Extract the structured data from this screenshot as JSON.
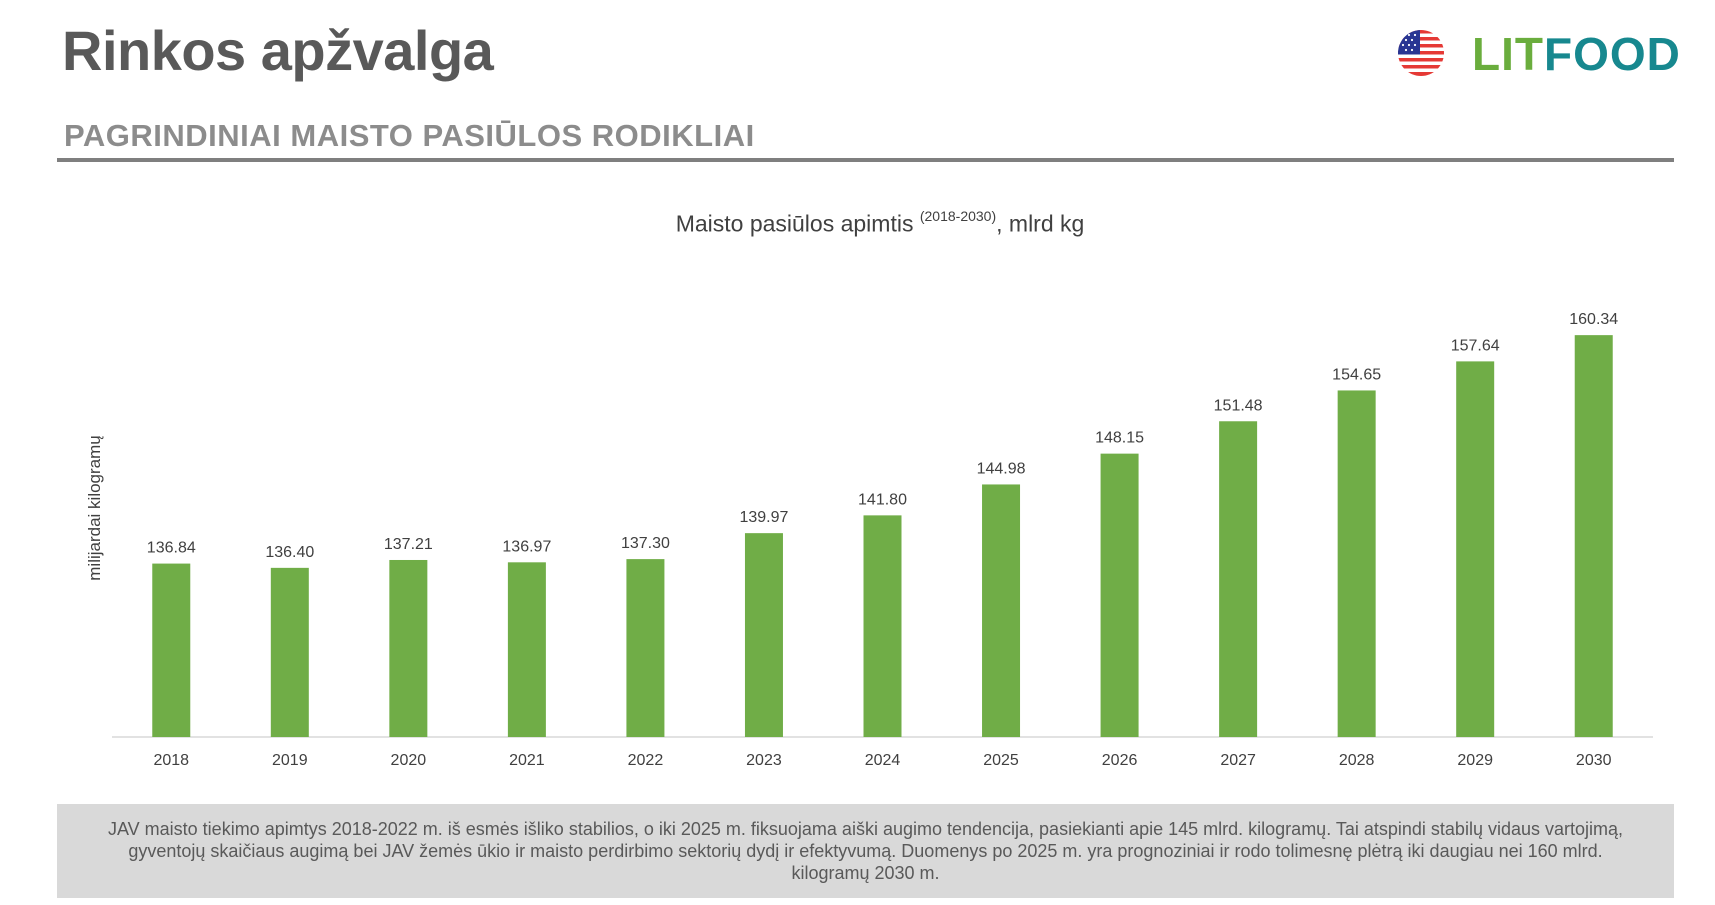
{
  "page": {
    "title": "Rinkos apžvalga",
    "section_title": "PAGRINDINIAI MAISTO PASIŪLOS RODIKLIAI",
    "note": "JAV maisto tiekimo apimtys 2018-2022 m. iš esmės išliko stabilios, o iki 2025 m. fiksuojama aiški augimo tendencija, pasiekianti apie 145 mlrd. kilogramų. Tai atspindi stabilų vidaus vartojimą, gyventojų skaičiaus augimą bei JAV žemės ūkio ir maisto perdirbimo sektorių dydį ir efektyvumą. Duomenys po 2025 m. yra prognoziniai ir rodo tolimesnę plėtrą iki daugiau nei 160 mlrd. kilogramų 2030 m."
  },
  "logo": {
    "part1": "LIT",
    "part2": "FOOD",
    "icon": "leaf-icon",
    "flag_icon": "us-flag-icon",
    "colors": {
      "green": "#6aad3d",
      "teal": "#17888f"
    }
  },
  "chart_data": {
    "type": "bar",
    "title_main": "Maisto pasiūlos apimtis ",
    "title_sup": "(2018-2030)",
    "title_end": ", mlrd kg",
    "ylabel": "milijardai kilogramų",
    "xlabel": "",
    "categories": [
      "2018",
      "2019",
      "2020",
      "2021",
      "2022",
      "2023",
      "2024",
      "2025",
      "2026",
      "2027",
      "2028",
      "2029",
      "2030"
    ],
    "values": [
      136.84,
      136.4,
      137.21,
      136.97,
      137.3,
      139.97,
      141.8,
      144.98,
      148.15,
      151.48,
      154.65,
      157.64,
      160.34
    ],
    "value_labels": [
      "136.84",
      "136.40",
      "137.21",
      "136.97",
      "137.30",
      "139.97",
      "141.80",
      "144.98",
      "148.15",
      "151.48",
      "154.65",
      "157.64",
      "160.34"
    ],
    "ylim": [
      119,
      162
    ],
    "bar_color": "#70ad47",
    "grid": false
  }
}
